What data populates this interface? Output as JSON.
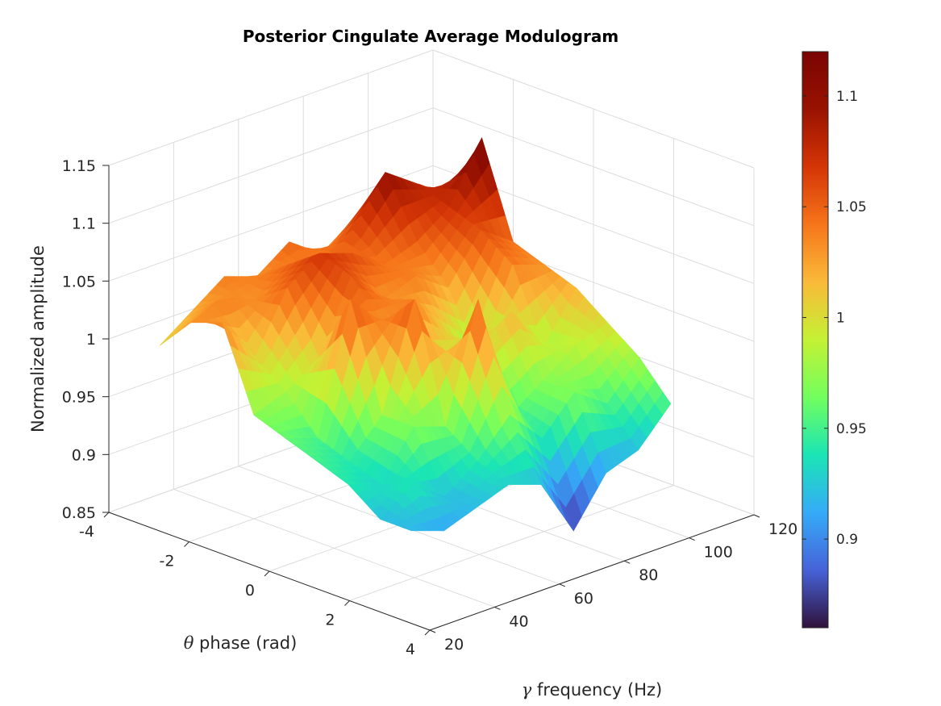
{
  "chart_data": {
    "type": "surface",
    "title": "Posterior Cingulate Average Modulogram",
    "xlabel": "θ phase (rad)",
    "ylabel": "γ frequency (Hz)",
    "zlabel": "Normalized amplitude",
    "xlim": [
      -4,
      4
    ],
    "ylim": [
      20,
      120
    ],
    "zlim": [
      0.85,
      1.15
    ],
    "x_ticks": [
      "-4",
      "-2",
      "0",
      "2",
      "4"
    ],
    "y_ticks": [
      "20",
      "40",
      "60",
      "80",
      "100",
      "120"
    ],
    "z_ticks": [
      "0.85",
      "0.9",
      "0.95",
      "1",
      "1.05",
      "1.1",
      "1.15"
    ],
    "colorbar": {
      "colormap": "turbo",
      "range": [
        0.86,
        1.12
      ],
      "ticks": [
        "0.9",
        "0.95",
        "1",
        "1.05",
        "1.1"
      ]
    },
    "grid": true,
    "surface": {
      "phase": [
        -3.14,
        -2.36,
        -1.57,
        -0.79,
        0.0,
        0.79,
        1.57,
        2.36,
        3.14
      ],
      "frequency": [
        25,
        35,
        45,
        55,
        65,
        75,
        85,
        95,
        105
      ],
      "amplitude": [
        [
          1.0,
          1.02,
          1.04,
          1.03,
          1.05,
          1.03,
          1.05,
          1.07,
          1.06
        ],
        [
          1.03,
          1.04,
          1.03,
          1.05,
          1.03,
          1.06,
          1.1,
          1.08,
          1.06
        ],
        [
          1.04,
          1.0,
          1.05,
          1.07,
          1.06,
          1.04,
          1.05,
          1.07,
          1.12
        ],
        [
          0.97,
          0.98,
          1.0,
          1.06,
          1.03,
          1.04,
          1.02,
          1.06,
          1.04
        ],
        [
          0.96,
          0.95,
          1.06,
          1.03,
          1.04,
          1.0,
          0.97,
          1.04,
          1.03
        ],
        [
          0.95,
          0.94,
          0.97,
          1.06,
          0.98,
          1.0,
          1.02,
          0.98,
          1.02
        ],
        [
          0.94,
          0.93,
          0.97,
          0.96,
          1.06,
          0.95,
          0.97,
          0.99,
          1.0
        ],
        [
          0.92,
          0.94,
          0.92,
          0.94,
          0.97,
          0.94,
          0.97,
          0.95,
          0.98
        ],
        [
          0.92,
          0.91,
          0.92,
          0.93,
          0.92,
          0.87,
          0.91,
          0.92,
          0.95
        ]
      ]
    }
  }
}
